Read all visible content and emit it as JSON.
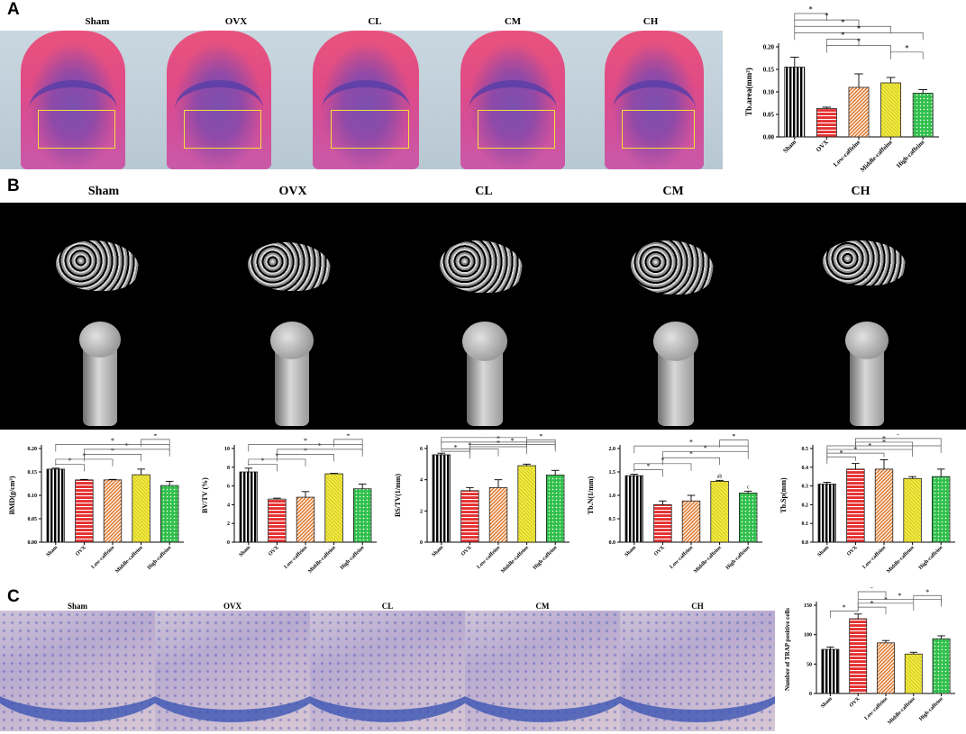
{
  "panels": {
    "A": {
      "letter": "A",
      "labels": [
        "Sham",
        "OVX",
        "CL",
        "CM",
        "CH"
      ]
    },
    "B": {
      "letter": "B",
      "labels": [
        "Sham",
        "OVX",
        "CL",
        "CM",
        "CH"
      ]
    },
    "C": {
      "letter": "C",
      "labels": [
        "Sham",
        "OVX",
        "CL",
        "CM",
        "CH"
      ]
    }
  },
  "colors": {
    "Sham": "#000000",
    "OVX": "#e53030",
    "Low-caffeine": "#e07a2e",
    "Middle-caffeine": "#f2ea3c",
    "High-caffeine": "#2fbf4a"
  },
  "chart_data": [
    {
      "id": "tbarea",
      "type": "bar",
      "categories": [
        "Sham",
        "OVX",
        "Low-caffeine",
        "Middle-caffeine",
        "High-caffeine"
      ],
      "values": [
        0.155,
        0.063,
        0.11,
        0.12,
        0.097
      ],
      "errors": [
        0.022,
        0.003,
        0.03,
        0.012,
        0.008
      ],
      "ylabel": "Tb.area(mm²)",
      "ylim": [
        0,
        0.2
      ],
      "yticks": [
        "0.00",
        "0.05",
        "0.10",
        "0.15",
        "0.20"
      ],
      "sig": [
        "*",
        "*",
        "*",
        "*",
        "*",
        "*",
        "*"
      ],
      "sig_marks": []
    },
    {
      "id": "bmd",
      "type": "bar",
      "categories": [
        "Sham",
        "OVX",
        "Low-caffeine",
        "Middle-caffeine",
        "High-caffeine"
      ],
      "values": [
        0.156,
        0.133,
        0.133,
        0.144,
        0.121
      ],
      "errors": [
        0.002,
        0.001,
        0.001,
        0.012,
        0.009
      ],
      "ylabel": "BMD(g/cm³)",
      "ylim": [
        0,
        0.2
      ],
      "yticks": [
        "0.00",
        "0.05",
        "0.10",
        "0.15",
        "0.20"
      ],
      "sig": [
        "*",
        "*",
        "*",
        "*",
        "*",
        "*"
      ],
      "sig_marks": []
    },
    {
      "id": "bvtv",
      "type": "bar",
      "categories": [
        "Sham",
        "OVX",
        "Low-caffeine",
        "Middle-caffeine",
        "High-caffeine"
      ],
      "values": [
        7.5,
        4.6,
        4.8,
        7.3,
        5.7
      ],
      "errors": [
        0.4,
        0.1,
        0.6,
        0.05,
        0.5
      ],
      "ylabel": "BV/TV (%)",
      "ylim": [
        0,
        10
      ],
      "yticks": [
        "0",
        "2",
        "4",
        "6",
        "8",
        "10"
      ],
      "sig": [
        "*",
        "*",
        "*",
        "*",
        "*",
        "*"
      ],
      "sig_marks": []
    },
    {
      "id": "bstv",
      "type": "bar",
      "categories": [
        "Sham",
        "OVX",
        "Low-caffeine",
        "Middle-caffeine",
        "High-caffeine"
      ],
      "values": [
        5.6,
        3.3,
        3.5,
        4.9,
        4.3
      ],
      "errors": [
        0.1,
        0.2,
        0.5,
        0.1,
        0.3
      ],
      "ylabel": "BS/TV(1/mm)",
      "ylim": [
        0,
        6
      ],
      "yticks": [
        "0",
        "2",
        "4",
        "6"
      ],
      "sig": [
        "*",
        "*",
        "*",
        "*",
        "*",
        "*",
        "*"
      ],
      "sig_marks": []
    },
    {
      "id": "tbn",
      "type": "bar",
      "categories": [
        "Sham",
        "OVX",
        "Low-caffeine",
        "Middle-caffeine",
        "High-caffeine"
      ],
      "values": [
        1.42,
        0.8,
        0.88,
        1.3,
        1.05
      ],
      "errors": [
        0.03,
        0.08,
        0.12,
        0.02,
        0.04
      ],
      "ylabel": "Tb.N(1/mm)",
      "ylim": [
        0,
        2.0
      ],
      "yticks": [
        "0.0",
        "0.5",
        "1.0",
        "1.5",
        "2.0"
      ],
      "sig": [
        "*",
        "*",
        "*",
        "*",
        "*",
        "*"
      ],
      "sig_marks": [
        {
          "bar": 3,
          "text": "ab"
        },
        {
          "bar": 4,
          "text": "c"
        }
      ]
    },
    {
      "id": "tbsp",
      "type": "bar",
      "categories": [
        "Sham",
        "OVX",
        "Low-caffeine",
        "Middle-caffeine",
        "High-caffeine"
      ],
      "values": [
        0.31,
        0.39,
        0.39,
        0.34,
        0.35
      ],
      "errors": [
        0.01,
        0.03,
        0.05,
        0.01,
        0.04
      ],
      "ylabel": "Tb.Sp(mm)",
      "ylim": [
        0,
        0.5
      ],
      "yticks": [
        "0.0",
        "0.1",
        "0.2",
        "0.3",
        "0.4",
        "0.5"
      ],
      "sig": [
        "*",
        "*",
        "*",
        "*",
        "*",
        "*"
      ],
      "sig_marks": []
    },
    {
      "id": "trap",
      "type": "bar",
      "categories": [
        "Sham",
        "OVX",
        "Low-caffeine",
        "Middle-caffeine",
        "High-caffeine"
      ],
      "values": [
        75,
        127,
        86,
        67,
        93
      ],
      "errors": [
        4,
        8,
        4,
        3,
        5
      ],
      "ylabel": "Number of TRAP positive cells",
      "ylim": [
        0,
        150
      ],
      "yticks": [
        "0",
        "50",
        "100",
        "150"
      ],
      "sig": [
        "*",
        "*",
        "*",
        "*",
        "*",
        "*"
      ],
      "sig_marks": []
    }
  ]
}
